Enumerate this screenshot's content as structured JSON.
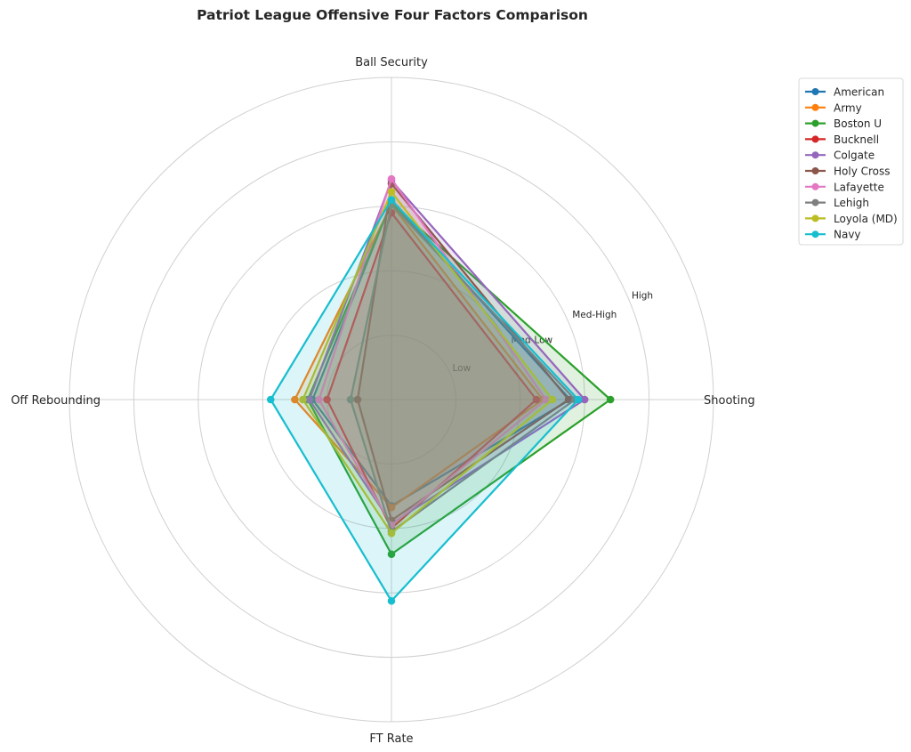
{
  "chart_data": {
    "type": "radar",
    "title": "Patriot League Offensive Four Factors Comparison",
    "axes": [
      "Ball Security",
      "Shooting",
      "FT Rate",
      "Off Rebounding"
    ],
    "rlim": [
      0,
      1
    ],
    "grid": true,
    "rings": [
      0.2,
      0.4,
      0.6,
      0.8,
      1.0
    ],
    "radial_labels": [
      {
        "label": "Low",
        "value": 0.235
      },
      {
        "label": "Med-Low",
        "value": 0.47
      },
      {
        "label": "Med-High",
        "value": 0.68
      },
      {
        "label": "High",
        "value": 0.84
      }
    ],
    "legend_position": "top-right",
    "series": [
      {
        "name": "American",
        "color": "#1f77b4",
        "values": [
          0.615,
          0.555,
          0.33,
          0.245
        ]
      },
      {
        "name": "Army",
        "color": "#ff7f0e",
        "values": [
          0.605,
          0.47,
          0.335,
          0.3
        ]
      },
      {
        "name": "Boston U",
        "color": "#2ca02c",
        "values": [
          0.61,
          0.68,
          0.48,
          0.26
        ]
      },
      {
        "name": "Bucknell",
        "color": "#d62728",
        "values": [
          0.58,
          0.45,
          0.4,
          0.2
        ]
      },
      {
        "name": "Colgate",
        "color": "#9467bd",
        "values": [
          0.68,
          0.6,
          0.385,
          0.255
        ]
      },
      {
        "name": "Holy Cross",
        "color": "#8c564b",
        "values": [
          0.67,
          0.55,
          0.375,
          0.105
        ]
      },
      {
        "name": "Lafayette",
        "color": "#e377c2",
        "values": [
          0.685,
          0.48,
          0.39,
          0.225
        ]
      },
      {
        "name": "Lehigh",
        "color": "#7f7f7f",
        "values": [
          0.605,
          0.57,
          0.41,
          0.127
        ]
      },
      {
        "name": "Loyola (MD)",
        "color": "#bcbd22",
        "values": [
          0.645,
          0.5,
          0.415,
          0.275
        ]
      },
      {
        "name": "Navy",
        "color": "#17becf",
        "values": [
          0.62,
          0.58,
          0.625,
          0.375
        ]
      }
    ]
  }
}
